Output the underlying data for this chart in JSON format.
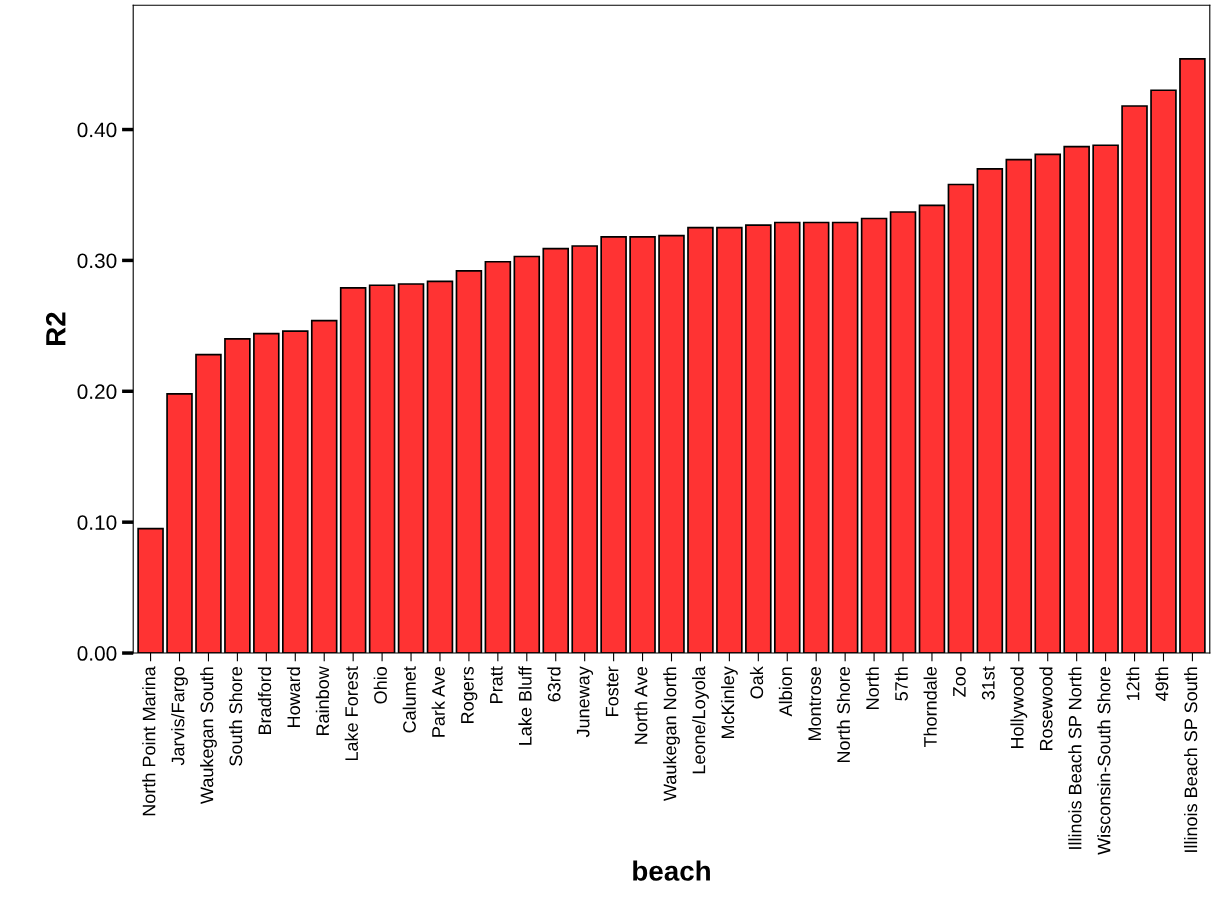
{
  "chart_data": {
    "type": "bar",
    "xlabel": "beach",
    "ylabel": "R2",
    "color": "#ff3333",
    "categories": [
      "North Point Marina",
      "Jarvis/Fargo",
      "Waukegan South",
      "South Shore",
      "Bradford",
      "Howard",
      "Rainbow",
      "Lake Forest",
      "Ohio",
      "Calumet",
      "Park Ave",
      "Rogers",
      "Pratt",
      "Lake Bluff",
      "63rd",
      "Juneway",
      "Foster",
      "North Ave",
      "Waukegan North",
      "Leone/Loyola",
      "McKinley",
      "Oak",
      "Albion",
      "Montrose",
      "North Shore",
      "North",
      "57th",
      "Thorndale",
      "Zoo",
      "31st",
      "Hollywood",
      "Rosewood",
      "Illinois Beach SP North",
      "Wisconsin-South Shore",
      "12th",
      "49th",
      "Illinois Beach SP South"
    ],
    "values": [
      0.095,
      0.198,
      0.228,
      0.24,
      0.244,
      0.246,
      0.254,
      0.279,
      0.281,
      0.282,
      0.284,
      0.292,
      0.299,
      0.303,
      0.309,
      0.311,
      0.318,
      0.318,
      0.319,
      0.325,
      0.325,
      0.327,
      0.329,
      0.329,
      0.329,
      0.332,
      0.337,
      0.342,
      0.358,
      0.37,
      0.377,
      0.381,
      0.387,
      0.388,
      0.418,
      0.43,
      0.454
    ],
    "ylim": [
      0,
      0.495
    ],
    "yticks": [
      {
        "value": 0,
        "label": "0.00"
      },
      {
        "value": 0.1,
        "label": "0.10"
      },
      {
        "value": 0.2,
        "label": "0.20"
      },
      {
        "value": 0.3,
        "label": "0.30"
      },
      {
        "value": 0.4,
        "label": "0.40"
      }
    ],
    "grid": false
  }
}
